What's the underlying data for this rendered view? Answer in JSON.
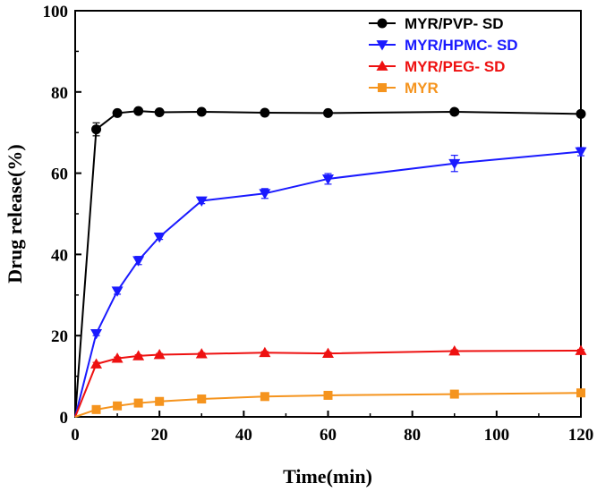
{
  "chart_data": {
    "type": "line",
    "title": "",
    "xlabel": "Time(min)",
    "ylabel": "Drug release(%)",
    "xlim": [
      0,
      120
    ],
    "ylim": [
      0,
      100
    ],
    "x_ticks": [
      0,
      20,
      40,
      60,
      80,
      100,
      120
    ],
    "y_ticks": [
      0,
      20,
      40,
      60,
      80,
      100
    ],
    "legend_position": "top-right",
    "series": [
      {
        "name": "MYR/PVP- SD",
        "color": "#000000",
        "marker": "circle",
        "x": [
          0,
          5,
          10,
          15,
          20,
          30,
          45,
          60,
          90,
          120
        ],
        "values": [
          0,
          70.8,
          74.8,
          75.3,
          75.0,
          75.1,
          74.9,
          74.8,
          75.1,
          74.6
        ],
        "errors": [
          0,
          1.6,
          0.6,
          0.4,
          0.3,
          0.3,
          0.3,
          0.3,
          0.4,
          0.5
        ]
      },
      {
        "name": "MYR/HPMC- SD",
        "color": "#1a1aff",
        "marker": "triangle-down",
        "x": [
          0,
          5,
          10,
          15,
          20,
          30,
          45,
          60,
          90,
          120
        ],
        "values": [
          0,
          20.5,
          31.0,
          38.5,
          44.3,
          53.2,
          55.0,
          58.6,
          62.4,
          65.3
        ],
        "errors": [
          0,
          0.5,
          0.8,
          1.0,
          0.6,
          0.7,
          1.2,
          1.3,
          2.0,
          1.0
        ]
      },
      {
        "name": "MYR/PEG- SD",
        "color": "#ee1111",
        "marker": "triangle-up",
        "x": [
          0,
          5,
          10,
          15,
          20,
          30,
          45,
          60,
          90,
          120
        ],
        "values": [
          0,
          13.0,
          14.4,
          15.0,
          15.3,
          15.5,
          15.8,
          15.6,
          16.2,
          16.3
        ],
        "errors": [
          0,
          0.4,
          0.3,
          0.3,
          0.3,
          0.3,
          0.3,
          0.3,
          0.3,
          0.3
        ]
      },
      {
        "name": "MYR",
        "color": "#f5941e",
        "marker": "square",
        "x": [
          0,
          5,
          10,
          15,
          20,
          30,
          45,
          60,
          90,
          120
        ],
        "values": [
          0,
          1.8,
          2.7,
          3.4,
          3.8,
          4.4,
          5.0,
          5.3,
          5.6,
          5.9
        ],
        "errors": [
          0,
          0.2,
          0.2,
          0.2,
          0.2,
          0.2,
          0.2,
          0.2,
          0.2,
          0.2
        ]
      }
    ]
  }
}
